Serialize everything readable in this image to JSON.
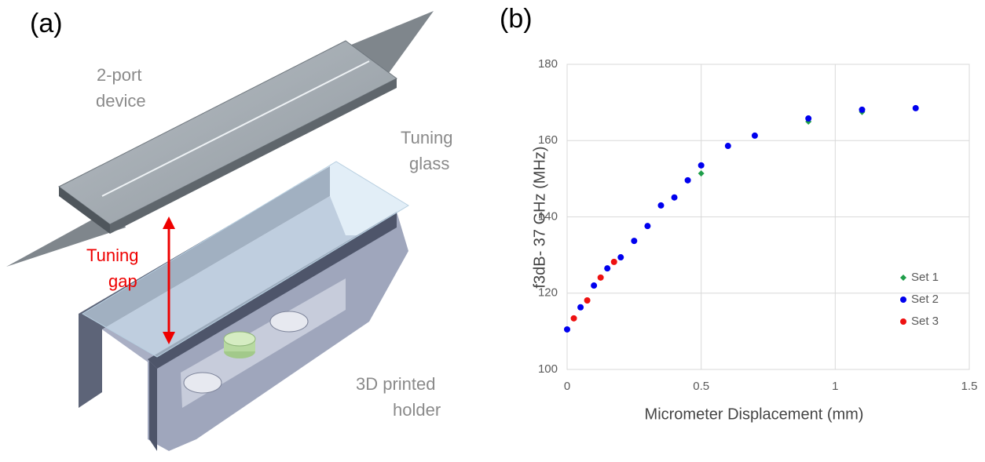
{
  "panel_labels": [
    "(a)",
    "(b)"
  ],
  "diagram": {
    "device_label": [
      "2-port",
      "device"
    ],
    "glass_label": [
      "Tuning",
      "glass"
    ],
    "gap_label": [
      "Tuning",
      "gap"
    ],
    "holder_label": [
      "3D printed",
      "holder"
    ]
  },
  "chart_data": {
    "type": "scatter",
    "x_label": "Micrometer Displacement (mm)",
    "y_label": "f3dB- 37 GHz (MHz)",
    "xlim": [
      0,
      1.5
    ],
    "xticks": [
      0,
      0.5,
      1,
      1.5
    ],
    "ylim": [
      100,
      180
    ],
    "yticks": [
      100,
      120,
      140,
      160,
      180
    ],
    "grid": true,
    "legend": "lower right",
    "series": [
      {
        "name": "Set 1",
        "color": "#1f9e4a",
        "marker": "diamond",
        "x": [
          0.5,
          0.9,
          1.1
        ],
        "values": [
          151.4,
          165.0,
          167.5
        ]
      },
      {
        "name": "Set 2",
        "color": "#0000ee",
        "marker": "circle",
        "x": [
          0,
          0.05,
          0.1,
          0.15,
          0.2,
          0.25,
          0.3,
          0.35,
          0.4,
          0.45,
          0.5,
          0.6,
          0.7,
          0.9,
          1.1,
          1.3
        ],
        "values": [
          110.5,
          116.3,
          122.0,
          126.5,
          129.4,
          133.7,
          137.6,
          143.0,
          145.1,
          149.6,
          153.5,
          158.6,
          161.3,
          165.8,
          168.1,
          168.5
        ]
      },
      {
        "name": "Set 3",
        "color": "#ee1111",
        "marker": "circle",
        "x": [
          0.025,
          0.075,
          0.125,
          0.175
        ],
        "values": [
          113.4,
          118.1,
          124.1,
          128.2
        ]
      }
    ]
  }
}
